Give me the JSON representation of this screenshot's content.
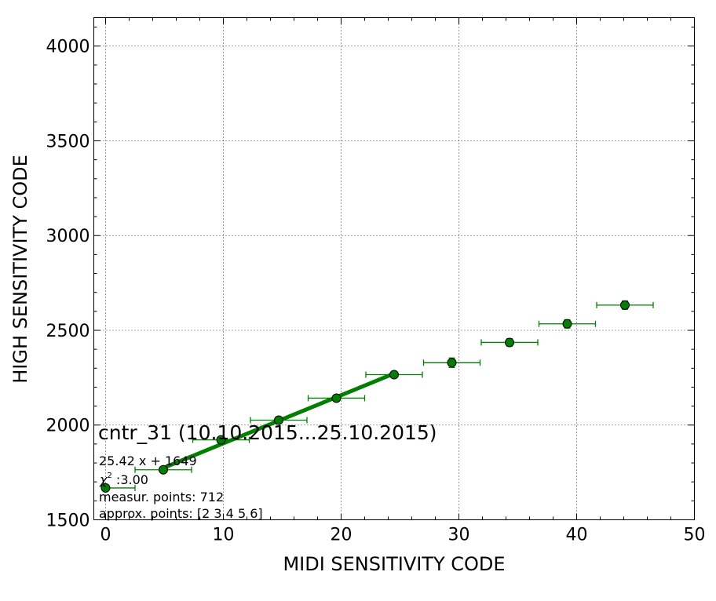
{
  "chart_data": {
    "type": "scatter",
    "title": "",
    "xlabel": "MIDI SENSITIVITY CODE",
    "ylabel": "HIGH SENSITIVITY CODE",
    "xlim": [
      -1,
      50
    ],
    "ylim": [
      1500,
      4150
    ],
    "x_ticks": [
      0,
      10,
      20,
      30,
      40,
      50
    ],
    "x_tick_labels": [
      "0",
      "10",
      "20",
      "30",
      "40",
      "50"
    ],
    "y_ticks": [
      1500,
      2000,
      2500,
      3000,
      3500,
      4000
    ],
    "y_tick_labels": [
      "1500",
      "2000",
      "2500",
      "3000",
      "3500",
      "4000"
    ],
    "grid": true,
    "colors": {
      "series": "#007f00",
      "marker_edge": "#000000",
      "fit_line": "#007f00"
    },
    "series": [
      {
        "points": [
          {
            "x": 0.0,
            "y": 1668,
            "xerr": [
              0.0,
              2.5
            ],
            "yerr": 10
          },
          {
            "x": 4.9,
            "y": 1764,
            "xerr": [
              2.4,
              2.4
            ],
            "yerr": 12
          },
          {
            "x": 9.8,
            "y": 1922,
            "xerr": [
              2.4,
              2.4
            ],
            "yerr": 12
          },
          {
            "x": 14.7,
            "y": 2026,
            "xerr": [
              2.4,
              2.4
            ],
            "yerr": 12
          },
          {
            "x": 19.6,
            "y": 2142,
            "xerr": [
              2.4,
              2.4
            ],
            "yerr": 15
          },
          {
            "x": 24.5,
            "y": 2266,
            "xerr": [
              2.4,
              2.4
            ],
            "yerr": 15
          },
          {
            "x": 29.4,
            "y": 2329,
            "xerr": [
              2.4,
              2.4
            ],
            "yerr": 25
          },
          {
            "x": 34.3,
            "y": 2436,
            "xerr": [
              2.4,
              2.4
            ],
            "yerr": 20
          },
          {
            "x": 39.2,
            "y": 2534,
            "xerr": [
              2.4,
              2.4
            ],
            "yerr": 22
          },
          {
            "x": 44.1,
            "y": 2633,
            "xerr": [
              2.4,
              2.4
            ],
            "yerr": 22
          }
        ]
      }
    ],
    "fit": {
      "slope": 25.42,
      "intercept": 1649,
      "x_range": [
        4.9,
        24.5
      ]
    },
    "annotations": {
      "counter": "cntr_31 (10.10.2015...25.10.2015)",
      "equation": "25.42 x + 1649",
      "chi2_symbol": "χ",
      "chi2_sup": "2",
      "chi2_value": " :3.00",
      "measur_points": "measur. points: 712",
      "approx_points": "approx. points: [2 3 4 5 6]"
    }
  }
}
